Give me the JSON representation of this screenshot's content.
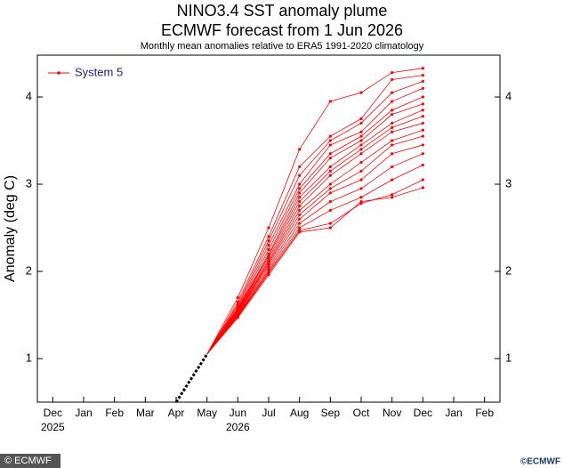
{
  "chart_data": {
    "type": "line",
    "title": "NINO3.4 SST anomaly plume",
    "subtitle": "ECMWF forecast from 1 Jun 2026",
    "note": "Monthly mean anomalies relative to ERA5 1991-2020 climatology",
    "y_label": "Anomaly (deg C)",
    "categories": [
      "Dec",
      "Jan",
      "Feb",
      "Mar",
      "Apr",
      "May",
      "Jun",
      "Jul",
      "Aug",
      "Sep",
      "Oct",
      "Nov",
      "Dec",
      "Jan",
      "Feb"
    ],
    "years": [
      "2025",
      null,
      null,
      null,
      null,
      null,
      "2026",
      null,
      null,
      null,
      null,
      null,
      null,
      null,
      null
    ],
    "ylim": [
      0.5,
      4.48
    ],
    "yticks": [
      1,
      2,
      3,
      4
    ],
    "legend": "top-left",
    "observed": {
      "color": "#000000",
      "values": [
        null,
        null,
        null,
        null,
        0.5,
        1.05,
        null,
        null,
        null,
        null,
        null,
        null,
        null,
        null,
        null
      ]
    },
    "series": [
      {
        "name": "System 5",
        "color": "#ff0000",
        "members": [
          {
            "values": [
              null,
              null,
              null,
              null,
              null,
              1.05,
              1.7,
              2.5,
              3.4,
              3.95,
              4.05,
              4.28,
              4.33,
              null,
              null
            ]
          },
          {
            "values": [
              null,
              null,
              null,
              null,
              null,
              1.05,
              1.65,
              2.4,
              3.2,
              3.55,
              3.75,
              4.2,
              4.25,
              null,
              null
            ]
          },
          {
            "values": [
              null,
              null,
              null,
              null,
              null,
              1.05,
              1.62,
              2.35,
              3.1,
              3.5,
              3.7,
              4.05,
              4.18,
              null,
              null
            ]
          },
          {
            "values": [
              null,
              null,
              null,
              null,
              null,
              1.05,
              1.6,
              2.3,
              3.0,
              3.45,
              3.6,
              3.95,
              4.1,
              null,
              null
            ]
          },
          {
            "values": [
              null,
              null,
              null,
              null,
              null,
              1.05,
              1.58,
              2.25,
              2.95,
              3.35,
              3.55,
              3.85,
              4.0,
              null,
              null
            ]
          },
          {
            "values": [
              null,
              null,
              null,
              null,
              null,
              1.05,
              1.57,
              2.2,
              2.9,
              3.3,
              3.5,
              3.8,
              3.92,
              null,
              null
            ]
          },
          {
            "values": [
              null,
              null,
              null,
              null,
              null,
              1.05,
              1.56,
              2.18,
              2.85,
              3.2,
              3.45,
              3.7,
              3.85,
              null,
              null
            ]
          },
          {
            "values": [
              null,
              null,
              null,
              null,
              null,
              1.05,
              1.55,
              2.15,
              2.8,
              3.15,
              3.4,
              3.65,
              3.78,
              null,
              null
            ]
          },
          {
            "values": [
              null,
              null,
              null,
              null,
              null,
              1.05,
              1.54,
              2.12,
              2.75,
              3.1,
              3.35,
              3.6,
              3.7,
              null,
              null
            ]
          },
          {
            "values": [
              null,
              null,
              null,
              null,
              null,
              1.05,
              1.53,
              2.1,
              2.7,
              3.0,
              3.25,
              3.5,
              3.62,
              null,
              null
            ]
          },
          {
            "values": [
              null,
              null,
              null,
              null,
              null,
              1.05,
              1.52,
              2.08,
              2.65,
              2.95,
              3.15,
              3.45,
              3.55,
              null,
              null
            ]
          },
          {
            "values": [
              null,
              null,
              null,
              null,
              null,
              1.05,
              1.51,
              2.05,
              2.6,
              2.9,
              3.05,
              3.35,
              3.45,
              null,
              null
            ]
          },
          {
            "values": [
              null,
              null,
              null,
              null,
              null,
              1.05,
              1.5,
              2.02,
              2.55,
              2.8,
              2.95,
              3.2,
              3.35,
              null,
              null
            ]
          },
          {
            "values": [
              null,
              null,
              null,
              null,
              null,
              1.05,
              1.49,
              2.0,
              2.5,
              2.7,
              2.85,
              3.05,
              3.22,
              null,
              null
            ]
          },
          {
            "values": [
              null,
              null,
              null,
              null,
              null,
              1.05,
              1.48,
              1.98,
              2.47,
              2.55,
              2.78,
              2.88,
              3.05,
              null,
              null
            ]
          },
          {
            "values": [
              null,
              null,
              null,
              null,
              null,
              1.05,
              1.47,
              1.96,
              2.45,
              2.5,
              2.8,
              2.85,
              2.96,
              null,
              null
            ]
          }
        ]
      }
    ],
    "credit_left": "© ECMWF",
    "credit_right": "©ECMWF"
  }
}
